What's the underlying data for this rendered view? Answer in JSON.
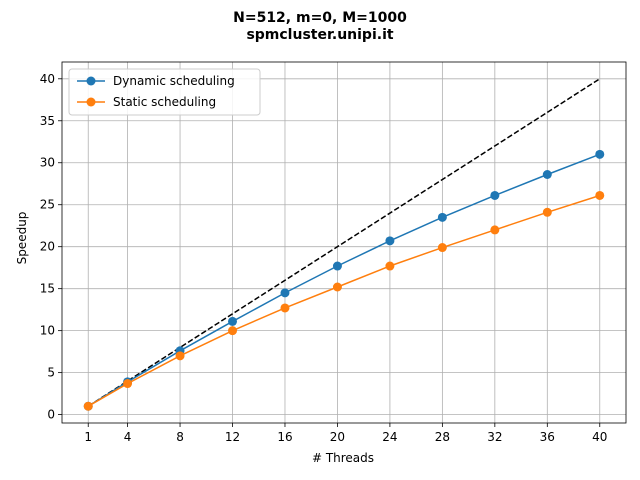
{
  "chart_data": {
    "type": "line",
    "title": "N=512, m=0, M=1000",
    "subtitle": "spmcluster.unipi.it",
    "xlabel": "# Threads",
    "ylabel": "Speedup",
    "x_ticks": [
      1,
      4,
      8,
      12,
      16,
      20,
      24,
      28,
      32,
      36,
      40
    ],
    "y_ticks": [
      0,
      5,
      10,
      15,
      20,
      25,
      30,
      35,
      40
    ],
    "xlim": [
      -1,
      42
    ],
    "ylim": [
      -1,
      42
    ],
    "grid": true,
    "legend_position": "top-left",
    "x": [
      1,
      4,
      8,
      12,
      16,
      20,
      24,
      28,
      32,
      36,
      40
    ],
    "series": [
      {
        "name": "Dynamic scheduling",
        "color": "#1f77b4",
        "marker": "circle",
        "values": [
          1.0,
          3.9,
          7.6,
          11.1,
          14.5,
          17.7,
          20.7,
          23.5,
          26.1,
          28.6,
          31.0
        ]
      },
      {
        "name": "Static scheduling",
        "color": "#ff7f0e",
        "marker": "circle",
        "values": [
          1.0,
          3.7,
          7.0,
          10.0,
          12.7,
          15.2,
          17.7,
          19.9,
          22.0,
          24.1,
          26.1
        ]
      }
    ],
    "reference_line": {
      "style": "dashed",
      "color": "#000000",
      "x": [
        1,
        40
      ],
      "values": [
        1,
        40
      ]
    }
  }
}
